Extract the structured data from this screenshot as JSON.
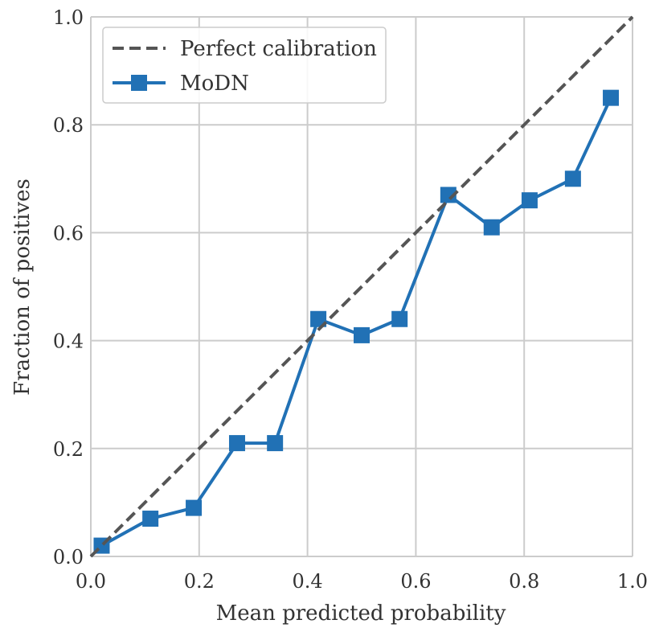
{
  "chart_data": {
    "type": "line",
    "xlabel": "Mean predicted probability",
    "ylabel": "Fraction of positives",
    "xlim": [
      0.0,
      1.0
    ],
    "ylim": [
      0.0,
      1.0
    ],
    "x_ticks": [
      "0.0",
      "0.2",
      "0.4",
      "0.6",
      "0.8",
      "1.0"
    ],
    "y_ticks": [
      "0.0",
      "0.2",
      "0.4",
      "0.6",
      "0.8",
      "1.0"
    ],
    "grid": true,
    "legend_position": "top-left",
    "series": [
      {
        "name": "Perfect calibration",
        "style": "dashed",
        "color": "#555555",
        "x": [
          0.0,
          1.0
        ],
        "y": [
          0.0,
          1.0
        ]
      },
      {
        "name": "MoDN",
        "style": "solid",
        "marker": "square",
        "color": "#2171b5",
        "x": [
          0.02,
          0.11,
          0.19,
          0.27,
          0.34,
          0.42,
          0.5,
          0.57,
          0.66,
          0.74,
          0.81,
          0.89,
          0.96
        ],
        "y": [
          0.02,
          0.07,
          0.09,
          0.21,
          0.21,
          0.44,
          0.41,
          0.44,
          0.67,
          0.61,
          0.66,
          0.7,
          0.85
        ]
      }
    ]
  }
}
